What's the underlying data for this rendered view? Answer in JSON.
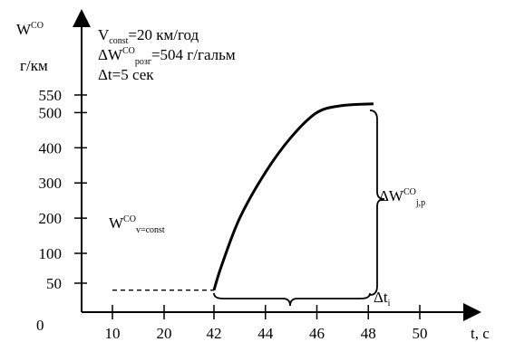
{
  "chart_data": {
    "type": "line",
    "y_axis": {
      "symbol": "W",
      "superscript": "CO",
      "unit": "г/км",
      "ticks": [
        0,
        50,
        100,
        200,
        300,
        400,
        500,
        550
      ],
      "range": [
        0,
        550
      ]
    },
    "x_axis": {
      "label": "t, с",
      "ticks": [
        10,
        20,
        42,
        44,
        46,
        48,
        50
      ],
      "tick_label_zero": "0"
    },
    "annotations": {
      "line1": {
        "main": "V",
        "sub": "const",
        "rest": "=20 км/год"
      },
      "line2": {
        "main": "ΔW",
        "sup": "CO",
        "sub": "розг",
        "rest": "=504 г/гальм"
      },
      "line3": {
        "text": "Δt=5 сек"
      },
      "constant_label": {
        "main": "W",
        "sup": "CO",
        "sub": "v=const"
      },
      "delta_w_label": {
        "main": "ΔW",
        "sup": "CO",
        "sub": "j,р"
      },
      "delta_t_label": {
        "main": "Δt",
        "sub": "i"
      }
    },
    "series": [
      {
        "style": "dashed",
        "x": [
          10,
          42
        ],
        "y": [
          38,
          38
        ]
      },
      {
        "style": "solid",
        "x": [
          42,
          42.3,
          43,
          44,
          45,
          46,
          47,
          48.2
        ],
        "y": [
          38,
          80,
          200,
          330,
          430,
          500,
          520,
          525
        ]
      }
    ]
  }
}
